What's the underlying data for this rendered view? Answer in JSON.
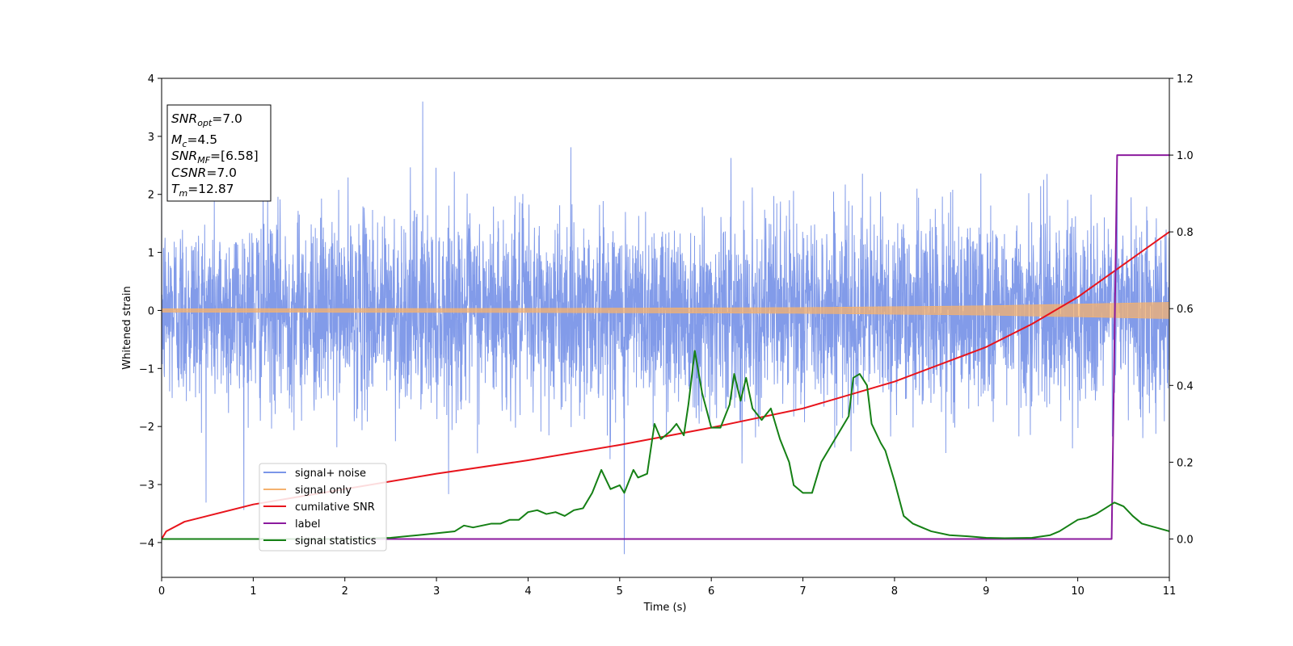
{
  "chart_data": {
    "type": "line",
    "xlabel": "Time (s)",
    "ylabel": "Whitened strain",
    "xlim": [
      0,
      11
    ],
    "ylim_left": [
      -4.6,
      4
    ],
    "ylim_right": [
      -0.1,
      1.2
    ],
    "x_ticks": [
      "0",
      "1",
      "2",
      "3",
      "4",
      "5",
      "6",
      "7",
      "8",
      "9",
      "10",
      "11"
    ],
    "y_ticks_left": [
      "4",
      "3",
      "2",
      "1",
      "0",
      "−1",
      "−2",
      "−3",
      "−4"
    ],
    "y_ticks_right": [
      "1.2",
      "1.0",
      "0.8",
      "0.6",
      "0.4",
      "0.2",
      "0.0"
    ],
    "colors": {
      "signal_noise": "#7b96e8",
      "signal_only": "#f5b26e",
      "cumulative_snr": "#e8141c",
      "label": "#8b1a9e",
      "signal_statistics": "#158015"
    },
    "info_box": {
      "snr_opt": {
        "base": "SNR",
        "sub": "opt",
        "value": "=7.0"
      },
      "mc": {
        "base": "M",
        "sub": "c",
        "value": "=4.5"
      },
      "snr_mf": {
        "base": "SNR",
        "sub": "MF",
        "value": "=[6.58]"
      },
      "csnr": {
        "base": "CSNR",
        "value": "=7.0"
      },
      "tm": {
        "base": "T",
        "sub": "m",
        "value": "=12.87"
      }
    },
    "legend": {
      "position": "lower left",
      "entries": [
        "signal+ noise",
        "signal only",
        "cumilative SNR",
        "label",
        "signal statistics"
      ]
    },
    "series": [
      {
        "name": "signal+ noise",
        "axis": "left",
        "kind": "noise",
        "amplitude_std": 0.82,
        "extreme_max": [
          3.6,
          2.85
        ],
        "extreme_min": [
          -4.2,
          5.05
        ]
      },
      {
        "name": "signal only",
        "axis": "left",
        "kind": "chirp_band",
        "half_width": [
          [
            0,
            0.03
          ],
          [
            4,
            0.035
          ],
          [
            7,
            0.05
          ],
          [
            9,
            0.08
          ],
          [
            10,
            0.11
          ],
          [
            11,
            0.14
          ]
        ]
      },
      {
        "name": "cumilative SNR",
        "axis": "right",
        "x": [
          0,
          0.05,
          0.25,
          0.5,
          1,
          1.5,
          2,
          3,
          4,
          5,
          6,
          7,
          8,
          9,
          9.5,
          10,
          10.5,
          11
        ],
        "y": [
          0.0,
          0.02,
          0.045,
          0.06,
          0.09,
          0.11,
          0.13,
          0.17,
          0.205,
          0.245,
          0.29,
          0.34,
          0.41,
          0.5,
          0.56,
          0.63,
          0.715,
          0.8
        ]
      },
      {
        "name": "label",
        "axis": "right",
        "x": [
          0,
          10.37,
          10.43,
          11
        ],
        "y": [
          0,
          0,
          1,
          1
        ]
      },
      {
        "name": "signal statistics",
        "axis": "right",
        "x": [
          0,
          1,
          2,
          2.5,
          2.8,
          3,
          3.2,
          3.3,
          3.4,
          3.5,
          3.6,
          3.7,
          3.8,
          3.9,
          4.0,
          4.1,
          4.2,
          4.3,
          4.4,
          4.5,
          4.6,
          4.7,
          4.8,
          4.9,
          5.0,
          5.05,
          5.15,
          5.2,
          5.3,
          5.38,
          5.45,
          5.55,
          5.62,
          5.7,
          5.75,
          5.82,
          5.9,
          6.0,
          6.1,
          6.2,
          6.25,
          6.32,
          6.38,
          6.45,
          6.55,
          6.65,
          6.75,
          6.85,
          6.9,
          7.0,
          7.1,
          7.2,
          7.3,
          7.4,
          7.5,
          7.55,
          7.62,
          7.7,
          7.75,
          7.85,
          7.9,
          8.0,
          8.1,
          8.2,
          8.4,
          8.6,
          8.8,
          9.0,
          9.2,
          9.5,
          9.7,
          9.8,
          9.9,
          10.0,
          10.1,
          10.2,
          10.3,
          10.4,
          10.5,
          10.6,
          10.7,
          10.85,
          11.0
        ],
        "y": [
          0,
          0,
          0,
          0.003,
          0.01,
          0.015,
          0.02,
          0.035,
          0.03,
          0.035,
          0.04,
          0.04,
          0.05,
          0.05,
          0.07,
          0.075,
          0.065,
          0.07,
          0.06,
          0.075,
          0.08,
          0.12,
          0.18,
          0.13,
          0.14,
          0.12,
          0.18,
          0.16,
          0.17,
          0.3,
          0.26,
          0.28,
          0.3,
          0.27,
          0.35,
          0.49,
          0.38,
          0.29,
          0.29,
          0.35,
          0.43,
          0.36,
          0.42,
          0.34,
          0.31,
          0.34,
          0.26,
          0.2,
          0.14,
          0.12,
          0.12,
          0.2,
          0.24,
          0.28,
          0.32,
          0.42,
          0.43,
          0.4,
          0.3,
          0.25,
          0.23,
          0.15,
          0.06,
          0.04,
          0.02,
          0.01,
          0.007,
          0.003,
          0.002,
          0.003,
          0.01,
          0.02,
          0.035,
          0.05,
          0.055,
          0.065,
          0.08,
          0.095,
          0.085,
          0.06,
          0.04,
          0.03,
          0.02
        ]
      }
    ]
  }
}
